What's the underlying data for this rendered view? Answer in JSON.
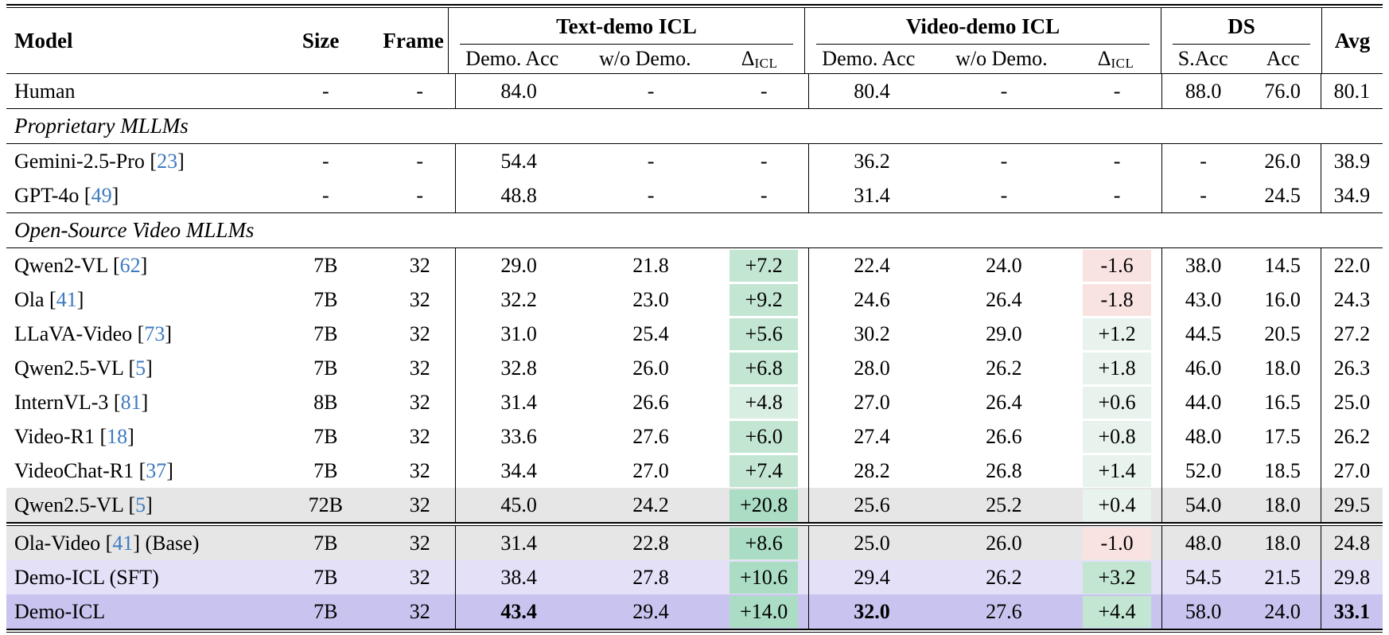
{
  "header": {
    "model": "Model",
    "size": "Size",
    "frame": "Frame",
    "avg": "Avg",
    "groups": [
      {
        "label": "Text-demo ICL",
        "sub1": "Demo. Acc",
        "sub2": "w/o Demo.",
        "delta": {
          "base": "Δ",
          "sub": "ICL"
        }
      },
      {
        "label": "Video-demo ICL",
        "sub1": "Demo. Acc",
        "sub2": "w/o Demo.",
        "delta": {
          "base": "Δ",
          "sub": "ICL"
        }
      },
      {
        "label": "DS",
        "sub1": "S.Acc",
        "sub2": "Acc"
      }
    ]
  },
  "colors": {
    "citation_blue": "#3d7abf",
    "row_gray": "#e6e6e6",
    "row_lavender": "#e3e0f8",
    "row_purple": "#c9c4ef",
    "delta_green_faint": "#e7f3ec",
    "delta_green_light": "#d9eee3",
    "delta_green_medium": "#c3e6d2",
    "delta_green_strong": "#aaddc4",
    "delta_red": "#f8e3e1"
  },
  "rows": [
    {
      "type": "data",
      "model": {
        "pre": "Human"
      },
      "size": "-",
      "frame": "-",
      "cells": [
        {
          "v": "84.0"
        },
        {
          "v": "-"
        },
        {
          "v": "-"
        },
        {
          "v": "80.4"
        },
        {
          "v": "-"
        },
        {
          "v": "-"
        },
        {
          "v": "88.0"
        },
        {
          "v": "76.0"
        },
        {
          "v": "80.1"
        }
      ]
    },
    {
      "type": "section",
      "label": "Proprietary MLLMs"
    },
    {
      "type": "data",
      "model": {
        "pre": "Gemini-2.5-Pro [",
        "cite": "23",
        "post": "]"
      },
      "size": "-",
      "frame": "-",
      "cells": [
        {
          "v": "54.4"
        },
        {
          "v": "-"
        },
        {
          "v": "-"
        },
        {
          "v": "36.2"
        },
        {
          "v": "-"
        },
        {
          "v": "-"
        },
        {
          "v": "-"
        },
        {
          "v": "26.0"
        },
        {
          "v": "38.9"
        }
      ]
    },
    {
      "type": "data",
      "model": {
        "pre": "GPT-4o [",
        "cite": "49",
        "post": "]"
      },
      "size": "-",
      "frame": "-",
      "cells": [
        {
          "v": "48.8"
        },
        {
          "v": "-"
        },
        {
          "v": "-"
        },
        {
          "v": "31.4"
        },
        {
          "v": "-"
        },
        {
          "v": "-"
        },
        {
          "v": "-"
        },
        {
          "v": "24.5"
        },
        {
          "v": "34.9"
        }
      ]
    },
    {
      "type": "section",
      "label": "Open-Source Video MLLMs"
    },
    {
      "type": "data",
      "model": {
        "pre": "Qwen2-VL [",
        "cite": "62",
        "post": "]"
      },
      "size": "7B",
      "frame": "32",
      "cells": [
        {
          "v": "29.0"
        },
        {
          "v": "21.8"
        },
        {
          "v": "+7.2",
          "bg": "g3"
        },
        {
          "v": "22.4"
        },
        {
          "v": "24.0"
        },
        {
          "v": "-1.6",
          "bg": "r1"
        },
        {
          "v": "38.0"
        },
        {
          "v": "14.5"
        },
        {
          "v": "22.0"
        }
      ]
    },
    {
      "type": "data",
      "model": {
        "pre": "Ola [",
        "cite": "41",
        "post": "]"
      },
      "size": "7B",
      "frame": "32",
      "cells": [
        {
          "v": "32.2"
        },
        {
          "v": "23.0"
        },
        {
          "v": "+9.2",
          "bg": "g3"
        },
        {
          "v": "24.6"
        },
        {
          "v": "26.4"
        },
        {
          "v": "-1.8",
          "bg": "r1"
        },
        {
          "v": "43.0"
        },
        {
          "v": "16.0"
        },
        {
          "v": "24.3"
        }
      ]
    },
    {
      "type": "data",
      "model": {
        "pre": "LLaVA-Video [",
        "cite": "73",
        "post": "]"
      },
      "size": "7B",
      "frame": "32",
      "cells": [
        {
          "v": "31.0"
        },
        {
          "v": "25.4"
        },
        {
          "v": "+5.6",
          "bg": "g3"
        },
        {
          "v": "30.2"
        },
        {
          "v": "29.0"
        },
        {
          "v": "+1.2",
          "bg": "g1"
        },
        {
          "v": "44.5"
        },
        {
          "v": "20.5"
        },
        {
          "v": "27.2"
        }
      ]
    },
    {
      "type": "data",
      "model": {
        "pre": "Qwen2.5-VL [",
        "cite": "5",
        "post": "]"
      },
      "size": "7B",
      "frame": "32",
      "cells": [
        {
          "v": "32.8"
        },
        {
          "v": "26.0"
        },
        {
          "v": "+6.8",
          "bg": "g3"
        },
        {
          "v": "28.0"
        },
        {
          "v": "26.2"
        },
        {
          "v": "+1.8",
          "bg": "g1"
        },
        {
          "v": "46.0"
        },
        {
          "v": "18.0"
        },
        {
          "v": "26.3"
        }
      ]
    },
    {
      "type": "data",
      "model": {
        "pre": "InternVL-3 [",
        "cite": "81",
        "post": "]"
      },
      "size": "8B",
      "frame": "32",
      "cells": [
        {
          "v": "31.4"
        },
        {
          "v": "26.6"
        },
        {
          "v": "+4.8",
          "bg": "g2"
        },
        {
          "v": "27.0"
        },
        {
          "v": "26.4"
        },
        {
          "v": "+0.6",
          "bg": "g1"
        },
        {
          "v": "44.0"
        },
        {
          "v": "16.5"
        },
        {
          "v": "25.0"
        }
      ]
    },
    {
      "type": "data",
      "model": {
        "pre": "Video-R1 [",
        "cite": "18",
        "post": "]"
      },
      "size": "7B",
      "frame": "32",
      "cells": [
        {
          "v": "33.6"
        },
        {
          "v": "27.6"
        },
        {
          "v": "+6.0",
          "bg": "g3"
        },
        {
          "v": "27.4"
        },
        {
          "v": "26.6"
        },
        {
          "v": "+0.8",
          "bg": "g1"
        },
        {
          "v": "48.0"
        },
        {
          "v": "17.5"
        },
        {
          "v": "26.2"
        }
      ]
    },
    {
      "type": "data",
      "model": {
        "pre": "VideoChat-R1 [",
        "cite": "37",
        "post": "]"
      },
      "size": "7B",
      "frame": "32",
      "cells": [
        {
          "v": "34.4"
        },
        {
          "v": "27.0"
        },
        {
          "v": "+7.4",
          "bg": "g3"
        },
        {
          "v": "28.2"
        },
        {
          "v": "26.8"
        },
        {
          "v": "+1.4",
          "bg": "g1"
        },
        {
          "v": "52.0"
        },
        {
          "v": "18.5"
        },
        {
          "v": "27.0"
        }
      ]
    },
    {
      "type": "data",
      "rowbg": "gray",
      "model": {
        "pre": "Qwen2.5-VL [",
        "cite": "5",
        "post": "]"
      },
      "size": "72B",
      "frame": "32",
      "cells": [
        {
          "v": "45.0"
        },
        {
          "v": "24.2"
        },
        {
          "v": "+20.8",
          "bg": "g4"
        },
        {
          "v": "25.6"
        },
        {
          "v": "25.2"
        },
        {
          "v": "+0.4",
          "bg": "g1"
        },
        {
          "v": "54.0"
        },
        {
          "v": "18.0"
        },
        {
          "v": "29.5"
        }
      ]
    },
    {
      "type": "double"
    },
    {
      "type": "data",
      "rowbg": "gray",
      "model": {
        "pre": "Ola-Video [",
        "cite": "41",
        "post": "] (Base)"
      },
      "size": "7B",
      "frame": "32",
      "cells": [
        {
          "v": "31.4"
        },
        {
          "v": "22.8"
        },
        {
          "v": "+8.6",
          "bg": "g4"
        },
        {
          "v": "25.0"
        },
        {
          "v": "26.0"
        },
        {
          "v": "-1.0",
          "bg": "r1"
        },
        {
          "v": "48.0"
        },
        {
          "v": "18.0"
        },
        {
          "v": "24.8"
        }
      ]
    },
    {
      "type": "data",
      "rowbg": "lav",
      "model": {
        "pre": "Demo-ICL (SFT)"
      },
      "size": "7B",
      "frame": "32",
      "cells": [
        {
          "v": "38.4"
        },
        {
          "v": "27.8"
        },
        {
          "v": "+10.6",
          "bg": "g4"
        },
        {
          "v": "29.4"
        },
        {
          "v": "26.2"
        },
        {
          "v": "+3.2",
          "bg": "g3"
        },
        {
          "v": "54.5"
        },
        {
          "v": "21.5"
        },
        {
          "v": "29.8"
        }
      ]
    },
    {
      "type": "data",
      "rowbg": "pur",
      "model": {
        "pre": "Demo-ICL"
      },
      "size": "7B",
      "frame": "32",
      "cells": [
        {
          "v": "43.4",
          "b": true
        },
        {
          "v": "29.4"
        },
        {
          "v": "+14.0",
          "bg": "g4"
        },
        {
          "v": "32.0",
          "b": true
        },
        {
          "v": "27.6"
        },
        {
          "v": "+4.4",
          "bg": "g3"
        },
        {
          "v": "58.0"
        },
        {
          "v": "24.0"
        },
        {
          "v": "33.1",
          "b": true
        }
      ]
    },
    {
      "type": "double"
    }
  ]
}
